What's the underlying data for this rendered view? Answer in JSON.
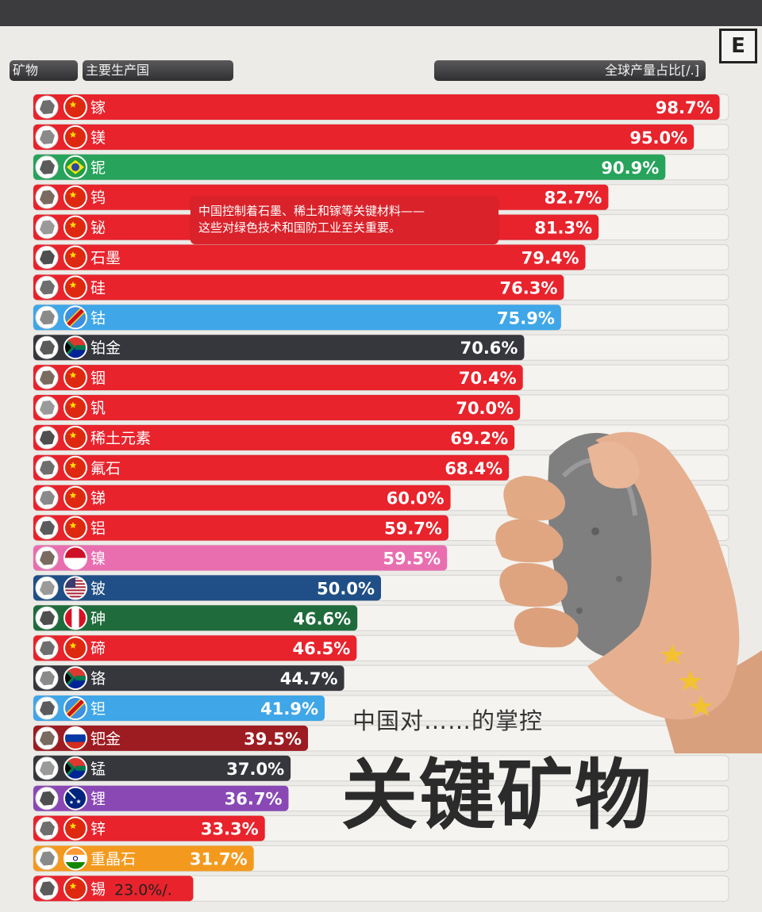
{
  "header": {
    "mineral_label": "矿物",
    "country_label": "主要生产国",
    "share_label": "全球产量占比[/.]",
    "logo": "E"
  },
  "callout": {
    "line1": "中国控制着石墨、稀土和镓等关键材料——",
    "line2": "这些对绿色技术和国防工业至关重要。"
  },
  "overlay": {
    "subtitle": "中国对……的掌控",
    "title": "关键矿物"
  },
  "colors": {
    "china": "#e8232c",
    "brazil": "#27a35b",
    "congo": "#3fa6e8",
    "south_africa": "#36373d",
    "indonesia": "#e96eb0",
    "usa": "#1f4f86",
    "peru": "#1f6b3c",
    "russia": "#9c1c22",
    "australia": "#8a48b5",
    "india": "#f39a1e",
    "track": "#f4f3f0"
  },
  "chart_data": {
    "type": "bar",
    "orientation": "horizontal",
    "xlim": [
      0,
      100
    ],
    "unit": "%",
    "rows": [
      {
        "mineral": "镓",
        "country": "china",
        "value": 98.7,
        "label": "98.7%"
      },
      {
        "mineral": "镁",
        "country": "china",
        "value": 95.0,
        "label": "95.0%"
      },
      {
        "mineral": "铌",
        "country": "brazil",
        "value": 90.9,
        "label": "90.9%"
      },
      {
        "mineral": "钨",
        "country": "china",
        "value": 82.7,
        "label": "82.7%"
      },
      {
        "mineral": "铋",
        "country": "china",
        "value": 81.3,
        "label": "81.3%"
      },
      {
        "mineral": "石墨",
        "country": "china",
        "value": 79.4,
        "label": "79.4%"
      },
      {
        "mineral": "硅",
        "country": "china",
        "value": 76.3,
        "label": "76.3%"
      },
      {
        "mineral": "钴",
        "country": "congo",
        "value": 75.9,
        "label": "75.9%"
      },
      {
        "mineral": "铂金",
        "country": "south_africa",
        "value": 70.6,
        "label": "70.6%"
      },
      {
        "mineral": "铟",
        "country": "china",
        "value": 70.4,
        "label": "70.4%"
      },
      {
        "mineral": "钒",
        "country": "china",
        "value": 70.0,
        "label": "70.0%"
      },
      {
        "mineral": "稀土元素",
        "country": "china",
        "value": 69.2,
        "label": "69.2%"
      },
      {
        "mineral": "氟石",
        "country": "china",
        "value": 68.4,
        "label": "68.4%"
      },
      {
        "mineral": "锑",
        "country": "china",
        "value": 60.0,
        "label": "60.0%"
      },
      {
        "mineral": "铝",
        "country": "china",
        "value": 59.7,
        "label": "59.7%"
      },
      {
        "mineral": "镍",
        "country": "indonesia",
        "value": 59.5,
        "label": "59.5%"
      },
      {
        "mineral": "铍",
        "country": "usa",
        "value": 50.0,
        "label": "50.0%"
      },
      {
        "mineral": "砷",
        "country": "peru",
        "value": 46.6,
        "label": "46.6%"
      },
      {
        "mineral": "碲",
        "country": "china",
        "value": 46.5,
        "label": "46.5%"
      },
      {
        "mineral": "铬",
        "country": "south_africa",
        "value": 44.7,
        "label": "44.7%"
      },
      {
        "mineral": "钽",
        "country": "congo",
        "value": 41.9,
        "label": "41.9%"
      },
      {
        "mineral": "钯金",
        "country": "russia",
        "value": 39.5,
        "label": "39.5%"
      },
      {
        "mineral": "锰",
        "country": "south_africa",
        "value": 37.0,
        "label": "37.0%"
      },
      {
        "mineral": "锂",
        "country": "australia",
        "value": 36.7,
        "label": "36.7%"
      },
      {
        "mineral": "锌",
        "country": "china",
        "value": 33.3,
        "label": "33.3%"
      },
      {
        "mineral": "重晶石",
        "country": "india",
        "value": 31.7,
        "label": "31.7%"
      },
      {
        "mineral": "锡",
        "country": "china",
        "value": 23.0,
        "label": "23.0%/."
      }
    ]
  }
}
